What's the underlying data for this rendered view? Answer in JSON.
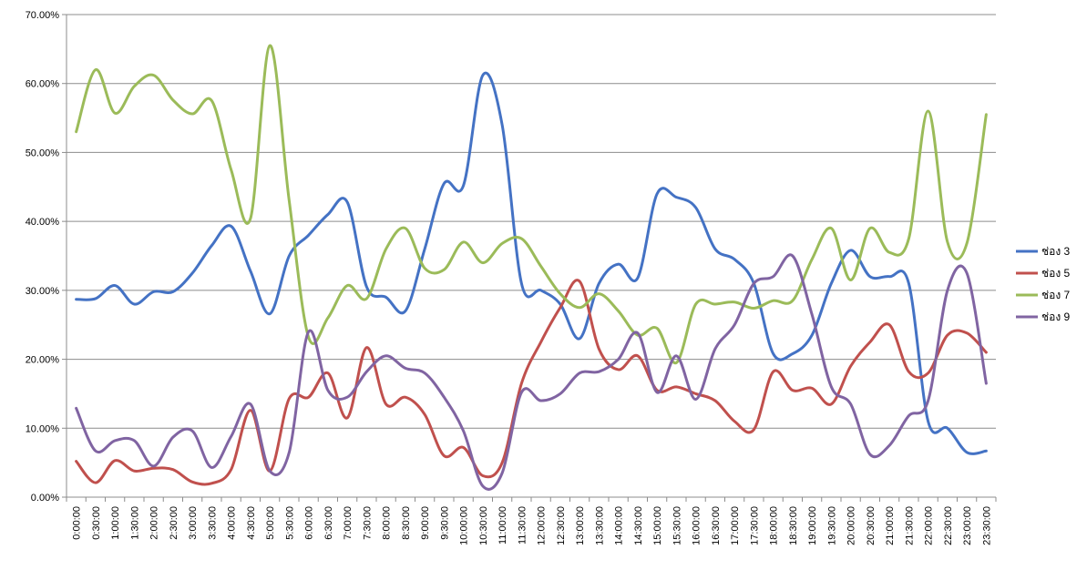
{
  "chart_data": {
    "type": "line",
    "title": "",
    "xlabel": "",
    "ylabel": "",
    "ylim": [
      0,
      70
    ],
    "y_ticks": [
      "0.00%",
      "10.00%",
      "20.00%",
      "30.00%",
      "40.00%",
      "50.00%",
      "60.00%",
      "70.00%"
    ],
    "grid": true,
    "legend_position": "right",
    "categories": [
      "0:00:00",
      "0:30:00",
      "1:00:00",
      "1:30:00",
      "2:00:00",
      "2:30:00",
      "3:00:00",
      "3:30:00",
      "4:00:00",
      "4:30:00",
      "5:00:00",
      "5:30:00",
      "6:00:00",
      "6:30:00",
      "7:00:00",
      "7:30:00",
      "8:00:00",
      "8:30:00",
      "9:00:00",
      "9:30:00",
      "10:00:00",
      "10:30:00",
      "11:00:00",
      "11:30:00",
      "12:00:00",
      "12:30:00",
      "13:00:00",
      "13:30:00",
      "14:00:00",
      "14:30:00",
      "15:00:00",
      "15:30:00",
      "16:00:00",
      "16:30:00",
      "17:00:00",
      "17:30:00",
      "18:00:00",
      "18:30:00",
      "19:00:00",
      "19:30:00",
      "20:00:00",
      "20:30:00",
      "21:00:00",
      "21:30:00",
      "22:00:00",
      "22:30:00",
      "23:00:00",
      "23:30:00"
    ],
    "series": [
      {
        "name": "ช่อง 3",
        "color": "#4472C4",
        "values": [
          28.7,
          28.8,
          30.7,
          28.0,
          29.8,
          29.8,
          32.5,
          36.5,
          39.3,
          32.8,
          26.6,
          35.0,
          38.0,
          41.0,
          42.8,
          30.5,
          29.0,
          27.0,
          36.0,
          45.5,
          45.2,
          61.2,
          54.0,
          31.0,
          30.0,
          28.0,
          23.0,
          31.0,
          33.8,
          31.8,
          44.0,
          43.5,
          42.0,
          36.0,
          34.5,
          31.0,
          20.8,
          20.8,
          23.5,
          31.0,
          35.8,
          32.0,
          32.0,
          31.0,
          11.0,
          10.0,
          6.5,
          6.7
        ]
      },
      {
        "name": "ช่อง 5",
        "color": "#C0504D",
        "values": [
          5.2,
          2.1,
          5.3,
          3.8,
          4.2,
          4.0,
          2.2,
          2.0,
          4.0,
          12.6,
          3.8,
          14.3,
          14.5,
          18.0,
          11.5,
          21.7,
          13.5,
          14.5,
          12.0,
          6.0,
          7.2,
          3.1,
          5.0,
          16.5,
          22.5,
          27.5,
          31.3,
          21.5,
          18.5,
          20.5,
          15.5,
          16.0,
          15.0,
          14.0,
          11.0,
          9.8,
          18.2,
          15.5,
          15.8,
          13.5,
          19.0,
          22.5,
          25.0,
          18.2,
          18.0,
          23.5,
          23.8,
          21.0
        ]
      },
      {
        "name": "ช่อง 7",
        "color": "#9BBB59",
        "values": [
          53.0,
          62.0,
          55.7,
          59.6,
          61.2,
          57.6,
          55.6,
          57.5,
          47.5,
          40.4,
          65.5,
          43.0,
          23.2,
          26.0,
          30.7,
          28.8,
          36.0,
          39.0,
          33.2,
          33.0,
          37.0,
          34.0,
          36.8,
          37.5,
          33.5,
          29.5,
          27.5,
          29.5,
          27.0,
          23.5,
          24.5,
          19.5,
          28.0,
          28.0,
          28.3,
          27.4,
          28.5,
          28.5,
          34.5,
          39.0,
          31.5,
          39.0,
          35.5,
          37.5,
          56.0,
          37.0,
          36.8,
          55.5
        ]
      },
      {
        "name": "ช่อง 9",
        "color": "#8064A2",
        "values": [
          12.9,
          6.7,
          8.2,
          8.2,
          4.5,
          8.7,
          9.6,
          4.3,
          8.8,
          13.5,
          3.8,
          6.5,
          24.0,
          15.5,
          14.5,
          18.2,
          20.5,
          18.7,
          18.0,
          14.5,
          9.6,
          1.6,
          3.5,
          15.2,
          14.0,
          15.0,
          18.0,
          18.2,
          20.0,
          23.8,
          15.2,
          20.5,
          14.2,
          21.5,
          25.0,
          31.0,
          32.0,
          35.0,
          26.5,
          16.0,
          13.5,
          6.2,
          7.5,
          11.8,
          14.0,
          30.0,
          32.5,
          16.5
        ]
      }
    ]
  }
}
